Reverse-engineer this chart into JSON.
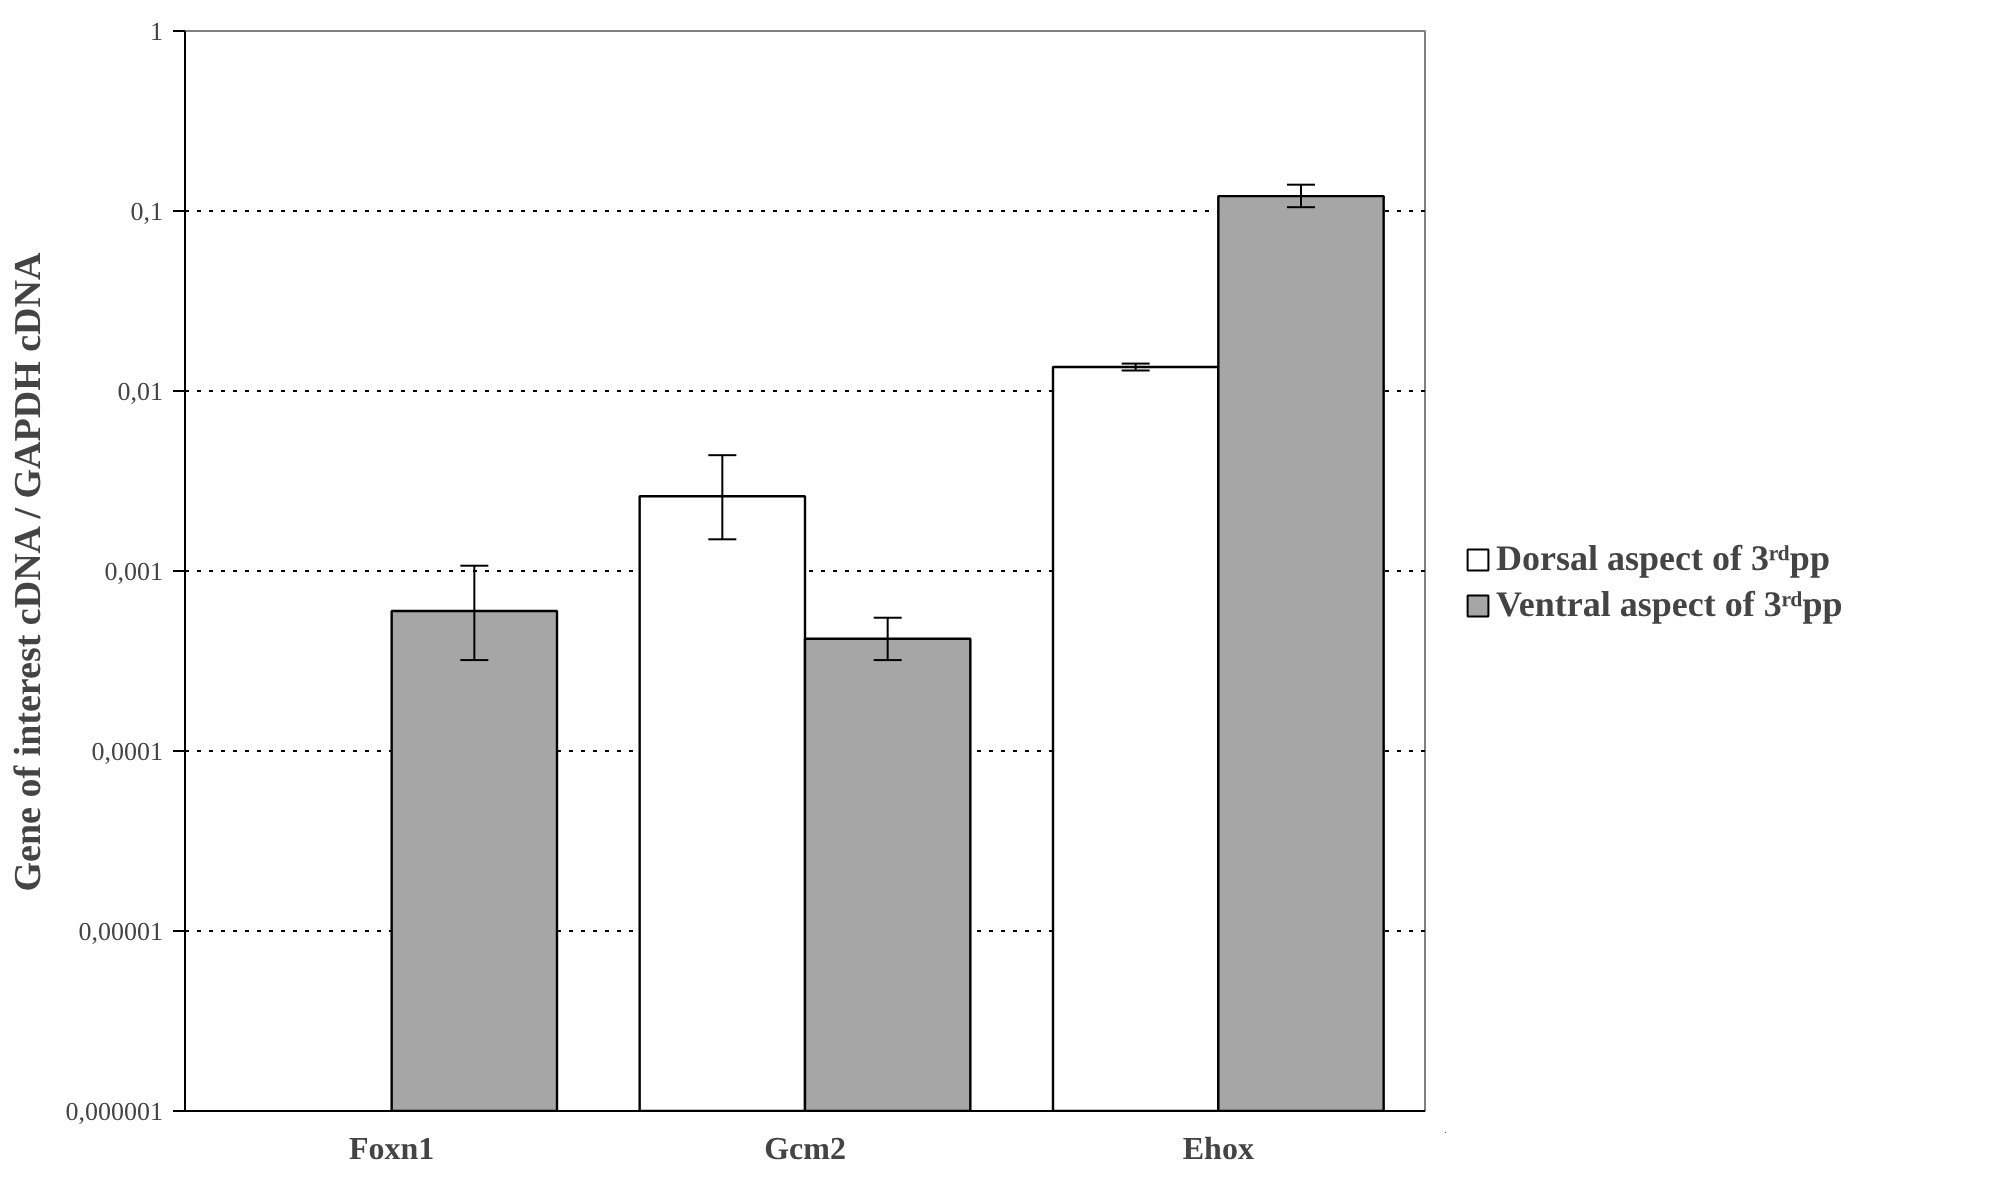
{
  "chart_data": {
    "type": "bar",
    "ylabel": "Gene of interest cDNA / GAPDH cDNA",
    "categories": [
      "Foxn1",
      "Gcm2",
      "Ehox"
    ],
    "series": [
      {
        "name": "Dorsal aspect of 3ʳᵈpp",
        "color": "#ffffff",
        "values": [
          null,
          0.0026,
          0.0136
        ],
        "errors": [
          null,
          [
            0.0015,
            0.0044
          ],
          [
            0.013,
            0.0142
          ]
        ]
      },
      {
        "name": "Ventral aspect of 3ʳᵈpp",
        "color": "#a6a6a6",
        "values": [
          0.0006,
          0.00042,
          0.121
        ],
        "errors": [
          [
            0.00032,
            0.00107
          ],
          [
            0.00032,
            0.00055
          ],
          [
            0.105,
            0.14
          ]
        ]
      }
    ],
    "log": true,
    "ylim": [
      1e-06,
      1
    ],
    "yticks": [
      {
        "value": 1e-06,
        "label": "0,000001"
      },
      {
        "value": 1e-05,
        "label": "0,00001"
      },
      {
        "value": 0.0001,
        "label": "0,0001"
      },
      {
        "value": 0.001,
        "label": "0,001"
      },
      {
        "value": 0.01,
        "label": "0,01"
      },
      {
        "value": 0.1,
        "label": "0,1"
      },
      1
    ],
    "grid": "y",
    "legend": "right"
  }
}
